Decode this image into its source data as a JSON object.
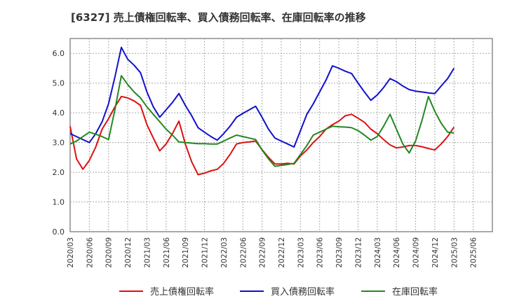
{
  "chart_data": {
    "type": "line",
    "title": "[6327]  売上債権回転率、買入債務回転率、在庫回転率の推移",
    "xlabel": "",
    "ylabel": "",
    "ylim": [
      0,
      6.5
    ],
    "yticks": [
      0.0,
      1.0,
      2.0,
      3.0,
      4.0,
      5.0,
      6.0
    ],
    "ytick_labels": [
      "0.0",
      "1.0",
      "2.0",
      "3.0",
      "4.0",
      "5.0",
      "6.0"
    ],
    "grid": true,
    "legend_position": "bottom",
    "categories": [
      "2020/03",
      "2020/06",
      "2020/09",
      "2020/12",
      "2021/03",
      "2021/06",
      "2021/09",
      "2021/12",
      "2022/03",
      "2022/06",
      "2022/09",
      "2022/12",
      "2023/03",
      "2023/06",
      "2023/09",
      "2023/12",
      "2024/03",
      "2024/06",
      "2024/09",
      "2024/12",
      "2025/03",
      "2025/06"
    ],
    "x": [
      "2020/03",
      "2020/04",
      "2020/05",
      "2020/06",
      "2020/07",
      "2020/08",
      "2020/09",
      "2020/10",
      "2020/11",
      "2020/12",
      "2021/01",
      "2021/02",
      "2021/03",
      "2021/04",
      "2021/05",
      "2021/06",
      "2021/07",
      "2021/08",
      "2021/09",
      "2021/10",
      "2021/11",
      "2021/12",
      "2022/01",
      "2022/02",
      "2022/03",
      "2022/04",
      "2022/05",
      "2022/06",
      "2022/07",
      "2022/08",
      "2022/09",
      "2022/10",
      "2022/11",
      "2022/12",
      "2023/01",
      "2023/02",
      "2023/03",
      "2023/04",
      "2023/05",
      "2023/06",
      "2023/07",
      "2023/08",
      "2023/09",
      "2023/10",
      "2023/11",
      "2023/12",
      "2024/01",
      "2024/02",
      "2024/03",
      "2024/04",
      "2024/05",
      "2024/06",
      "2024/07",
      "2024/08",
      "2024/09",
      "2024/10",
      "2024/11",
      "2024/12",
      "2025/01",
      "2025/02",
      "2025/03"
    ],
    "series": [
      {
        "name": "売上債権回転率",
        "color": "#dd1111",
        "values": [
          3.55,
          2.45,
          2.1,
          2.4,
          2.85,
          3.45,
          3.8,
          4.2,
          4.55,
          4.5,
          4.4,
          4.25,
          3.6,
          3.15,
          2.72,
          2.95,
          3.3,
          3.72,
          2.95,
          2.35,
          1.92,
          1.97,
          2.05,
          2.1,
          2.3,
          2.6,
          2.95,
          3.0,
          3.02,
          3.05,
          2.76,
          2.5,
          2.28,
          2.28,
          2.3,
          2.28,
          2.55,
          2.75,
          3.0,
          3.2,
          3.45,
          3.6,
          3.72,
          3.9,
          3.95,
          3.82,
          3.68,
          3.45,
          3.3,
          3.1,
          2.92,
          2.82,
          2.85,
          2.9,
          2.9,
          2.86,
          2.8,
          2.75,
          2.95,
          3.2,
          3.52
        ]
      },
      {
        "name": "買入債務回転率",
        "color": "#1111cc",
        "values": [
          3.3,
          3.2,
          3.1,
          3.0,
          3.3,
          3.7,
          4.3,
          5.2,
          6.2,
          5.8,
          5.6,
          5.35,
          4.7,
          4.2,
          3.85,
          4.1,
          4.35,
          4.65,
          4.25,
          3.9,
          3.5,
          3.35,
          3.2,
          3.08,
          3.3,
          3.55,
          3.85,
          3.98,
          4.1,
          4.22,
          3.85,
          3.45,
          3.15,
          3.05,
          2.95,
          2.85,
          3.4,
          3.95,
          4.3,
          4.7,
          5.1,
          5.58,
          5.5,
          5.4,
          5.32,
          5.0,
          4.7,
          4.42,
          4.6,
          4.85,
          5.15,
          5.05,
          4.9,
          4.78,
          4.73,
          4.7,
          4.67,
          4.65,
          4.9,
          5.15,
          5.5
        ]
      },
      {
        "name": "在庫回転率",
        "color": "#228822",
        "values": [
          2.95,
          3.05,
          3.2,
          3.35,
          3.28,
          3.2,
          3.1,
          4.1,
          5.25,
          4.95,
          4.7,
          4.5,
          4.2,
          3.95,
          3.7,
          3.45,
          3.25,
          3.02,
          3.0,
          2.98,
          2.96,
          2.96,
          2.95,
          2.95,
          3.05,
          3.15,
          3.25,
          3.2,
          3.15,
          3.1,
          2.75,
          2.45,
          2.2,
          2.23,
          2.26,
          2.3,
          2.6,
          2.9,
          3.25,
          3.35,
          3.45,
          3.55,
          3.53,
          3.52,
          3.5,
          3.4,
          3.25,
          3.08,
          3.2,
          3.55,
          3.95,
          3.45,
          2.95,
          2.65,
          3.05,
          3.75,
          4.55,
          4.05,
          3.65,
          3.35,
          3.32
        ]
      }
    ]
  }
}
